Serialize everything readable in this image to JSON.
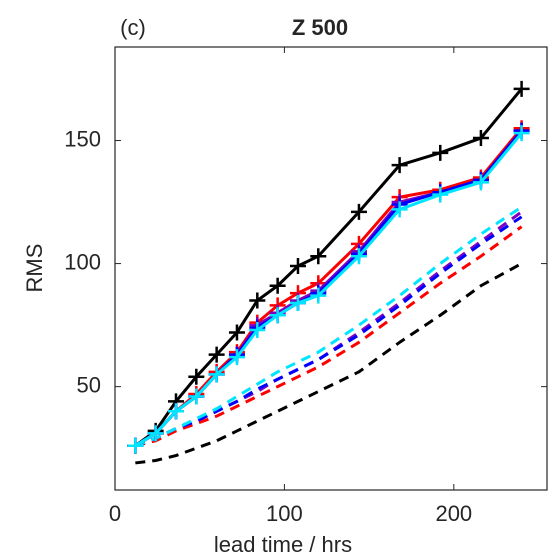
{
  "chart_data": {
    "type": "line",
    "title": "Z 500",
    "panel_label": "(c)",
    "x_label": "lead time / hrs",
    "y_label": "RMS",
    "x": [
      12,
      24,
      36,
      48,
      60,
      72,
      84,
      96,
      108,
      120,
      144,
      168,
      192,
      216,
      240
    ],
    "xlim": [
      0,
      255
    ],
    "ylim": [
      8,
      188
    ],
    "xticks": [
      0,
      100,
      200
    ],
    "yticks": [
      50,
      100,
      150
    ],
    "series": [
      {
        "color": "#000000",
        "linestyle": "solid",
        "marker": "+",
        "values": [
          26,
          32,
          44,
          54,
          63,
          72,
          85,
          91,
          99,
          103,
          121,
          140,
          145,
          151,
          171
        ]
      },
      {
        "color": "#ff0000",
        "linestyle": "solid",
        "marker": "+",
        "values": [
          26,
          31,
          40,
          47,
          56,
          64,
          76,
          83,
          88,
          92,
          108,
          127,
          130,
          135,
          155
        ]
      },
      {
        "color": "#8000c0",
        "linestyle": "solid",
        "marker": "+",
        "values": [
          26,
          31,
          40,
          46,
          55,
          63,
          75,
          80,
          85,
          89,
          105,
          125,
          129,
          134,
          154
        ]
      },
      {
        "color": "#0000ff",
        "linestyle": "solid",
        "marker": "+",
        "values": [
          26,
          31,
          40,
          46,
          55,
          63,
          74,
          79,
          84,
          88,
          104,
          124,
          129,
          134,
          154
        ]
      },
      {
        "color": "#00e5ff",
        "linestyle": "solid",
        "marker": "+",
        "values": [
          26,
          31,
          40,
          46,
          55,
          62,
          73,
          79,
          84,
          87,
          103,
          122,
          128,
          133,
          153
        ]
      },
      {
        "color": "#000000",
        "linestyle": "dashed",
        "values": [
          19,
          20,
          22,
          25,
          28,
          32,
          36,
          40,
          44,
          48,
          56,
          68,
          79,
          91,
          100
        ]
      },
      {
        "color": "#ff0000",
        "linestyle": "dashed",
        "values": [
          26,
          28,
          32,
          35,
          38,
          42,
          46,
          50,
          54,
          58,
          68,
          80,
          92,
          103,
          115
        ]
      },
      {
        "color": "#8000c0",
        "linestyle": "dashed",
        "values": [
          26,
          29,
          33,
          36,
          40,
          44,
          48,
          53,
          57,
          61,
          72,
          84,
          97,
          109,
          121
        ]
      },
      {
        "color": "#0000ff",
        "linestyle": "dashed",
        "values": [
          26,
          29,
          33,
          36,
          40,
          44,
          49,
          53,
          57,
          61,
          71,
          83,
          96,
          108,
          119
        ]
      },
      {
        "color": "#00e5ff",
        "linestyle": "dashed",
        "values": [
          26,
          29,
          33,
          37,
          41,
          46,
          51,
          56,
          60,
          64,
          75,
          87,
          100,
          112,
          123
        ]
      }
    ]
  }
}
